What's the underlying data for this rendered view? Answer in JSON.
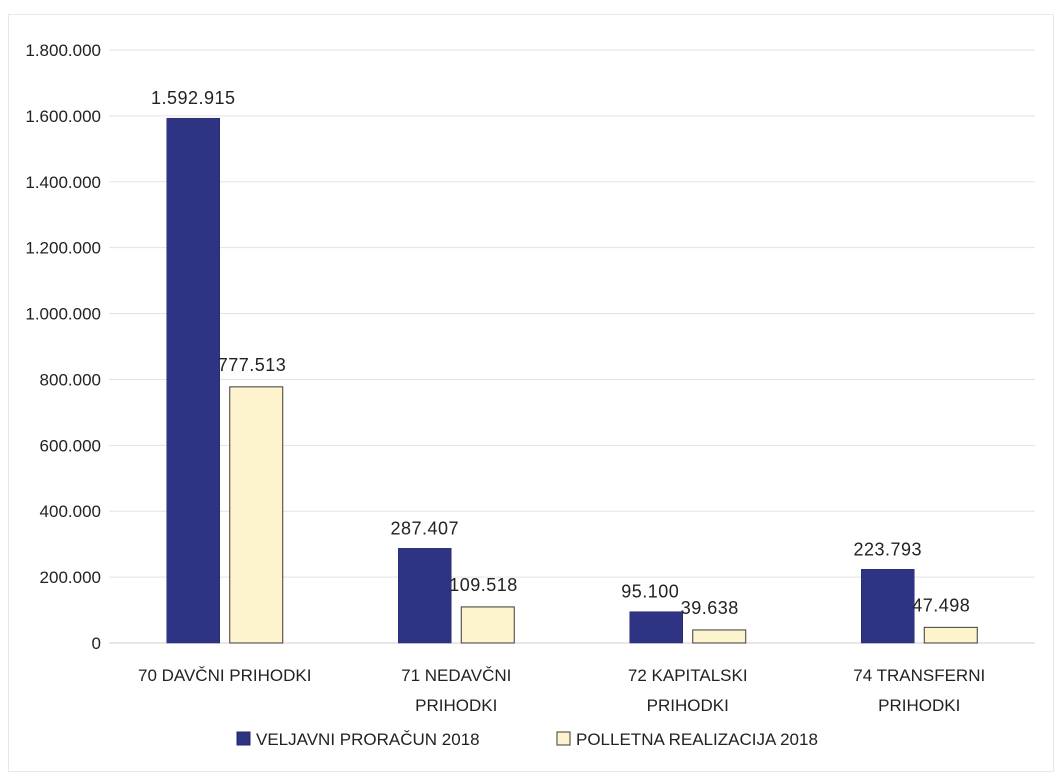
{
  "chart_data": {
    "type": "bar",
    "categories": [
      [
        "70 DAVČNI PRIHODKI"
      ],
      [
        "71 NEDAVČNI",
        "PRIHODKI"
      ],
      [
        "72 KAPITALSKI",
        "PRIHODKI"
      ],
      [
        "74 TRANSFERNI",
        "PRIHODKI"
      ]
    ],
    "series": [
      {
        "name": "VELJAVNI PRORAČUN 2018",
        "values": [
          1592915,
          287407,
          95100,
          223793
        ],
        "labels": [
          "1.592.915",
          "287.407",
          "95.100",
          "223.793"
        ],
        "color": "#2e3383"
      },
      {
        "name": "POLLETNA REALIZACIJA 2018",
        "values": [
          777513,
          109518,
          39638,
          47498
        ],
        "labels": [
          "777.513",
          "109.518",
          "39.638",
          "47.498"
        ],
        "color": "#fdf3cc"
      }
    ],
    "ylim": [
      0,
      1800000
    ],
    "yticks": [
      0,
      200000,
      400000,
      600000,
      800000,
      1000000,
      1200000,
      1400000,
      1600000,
      1800000
    ],
    "ytick_labels": [
      "0",
      "200.000",
      "400.000",
      "600.000",
      "800.000",
      "1.000.000",
      "1.200.000",
      "1.400.000",
      "1.600.000",
      "1.800.000"
    ],
    "grid": true,
    "legend_position": "bottom",
    "title": "",
    "xlabel": "",
    "ylabel": ""
  }
}
